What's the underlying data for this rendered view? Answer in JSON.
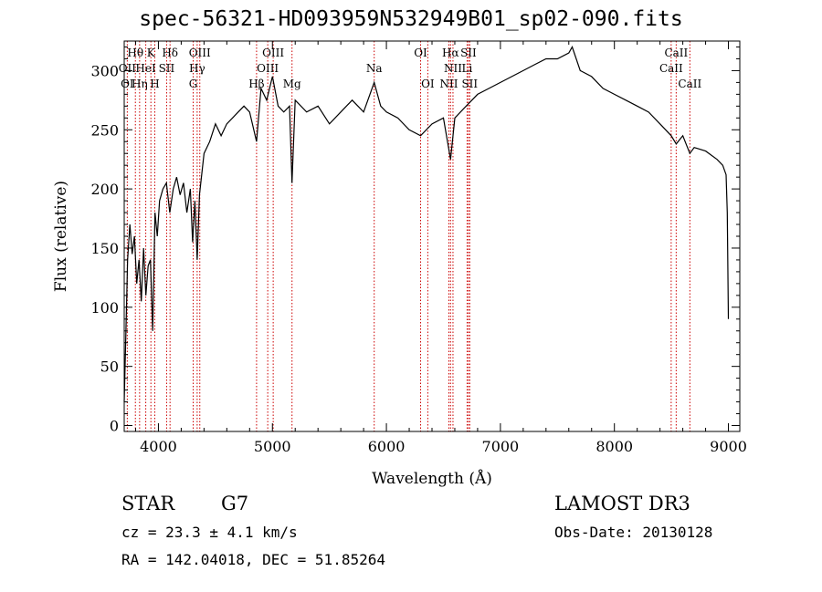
{
  "chart_data": {
    "type": "line",
    "title": "spec-56321-HD093959N532949B01_sp02-090.fits",
    "xlabel": "Wavelength (Å)",
    "ylabel": "Flux (relative)",
    "xlim": [
      3700,
      9100
    ],
    "ylim": [
      -5,
      325
    ],
    "xticks": [
      4000,
      5000,
      6000,
      7000,
      8000,
      9000
    ],
    "yticks": [
      0,
      50,
      100,
      150,
      200,
      250,
      300
    ],
    "grid": false,
    "series": [
      {
        "name": "spectrum",
        "x": [
          3700,
          3715,
          3730,
          3750,
          3770,
          3790,
          3810,
          3830,
          3850,
          3870,
          3890,
          3910,
          3930,
          3950,
          3970,
          3990,
          4010,
          4040,
          4070,
          4100,
          4130,
          4160,
          4190,
          4220,
          4250,
          4280,
          4300,
          4320,
          4340,
          4360,
          4400,
          4450,
          4500,
          4550,
          4600,
          4650,
          4700,
          4750,
          4800,
          4861,
          4900,
          4950,
          5000,
          5050,
          5100,
          5150,
          5172,
          5200,
          5300,
          5400,
          5500,
          5600,
          5700,
          5800,
          5893,
          5950,
          6000,
          6100,
          6200,
          6300,
          6400,
          6500,
          6563,
          6600,
          6700,
          6800,
          6900,
          7000,
          7100,
          7200,
          7300,
          7400,
          7500,
          7600,
          7630,
          7700,
          7800,
          7900,
          8000,
          8100,
          8200,
          8300,
          8400,
          8498,
          8542,
          8600,
          8662,
          8700,
          8800,
          8900,
          8950,
          8980,
          8990,
          9000
        ],
        "y": [
          20,
          80,
          140,
          170,
          145,
          160,
          120,
          140,
          105,
          150,
          110,
          135,
          140,
          80,
          180,
          160,
          190,
          200,
          205,
          180,
          200,
          210,
          195,
          205,
          180,
          200,
          155,
          190,
          140,
          195,
          230,
          240,
          255,
          245,
          255,
          260,
          265,
          270,
          265,
          240,
          285,
          275,
          295,
          270,
          265,
          270,
          205,
          275,
          265,
          270,
          255,
          265,
          275,
          265,
          290,
          270,
          265,
          260,
          250,
          245,
          255,
          260,
          225,
          260,
          270,
          280,
          285,
          290,
          295,
          300,
          305,
          310,
          310,
          315,
          320,
          300,
          295,
          285,
          280,
          275,
          270,
          265,
          255,
          245,
          238,
          245,
          230,
          235,
          232,
          225,
          220,
          212,
          180,
          90
        ]
      }
    ],
    "line_labels": [
      {
        "text": "Hθ",
        "row": 1,
        "wl": 3798
      },
      {
        "text": "K",
        "row": 1,
        "wl": 3934
      },
      {
        "text": "Hδ",
        "row": 1,
        "wl": 4102
      },
      {
        "text": "OIII",
        "row": 1,
        "wl": 4363
      },
      {
        "text": "OIII",
        "row": 1,
        "wl": 5007
      },
      {
        "text": "OI",
        "row": 1,
        "wl": 6300
      },
      {
        "text": "Hα",
        "row": 1,
        "wl": 6563
      },
      {
        "text": "SII",
        "row": 1,
        "wl": 6720
      },
      {
        "text": "CaII",
        "row": 1,
        "wl": 8542
      },
      {
        "text": "OII",
        "row": 2,
        "wl": 3727
      },
      {
        "text": "HeI",
        "row": 2,
        "wl": 3889
      },
      {
        "text": "SII",
        "row": 2,
        "wl": 4072
      },
      {
        "text": "Hγ",
        "row": 2,
        "wl": 4340
      },
      {
        "text": "OIII",
        "row": 2,
        "wl": 4959
      },
      {
        "text": "Na",
        "row": 2,
        "wl": 5893
      },
      {
        "text": "NII",
        "row": 2,
        "wl": 6584
      },
      {
        "text": "Li",
        "row": 2,
        "wl": 6708
      },
      {
        "text": "CaII",
        "row": 2,
        "wl": 8498
      },
      {
        "text": "OI",
        "row": 3,
        "wl": 3727
      },
      {
        "text": "Hη",
        "row": 3,
        "wl": 3835
      },
      {
        "text": "H",
        "row": 3,
        "wl": 3968
      },
      {
        "text": "G",
        "row": 3,
        "wl": 4305
      },
      {
        "text": "Hβ",
        "row": 3,
        "wl": 4861
      },
      {
        "text": "Mg",
        "row": 3,
        "wl": 5172
      },
      {
        "text": "OI",
        "row": 3,
        "wl": 6363
      },
      {
        "text": "NII",
        "row": 3,
        "wl": 6548
      },
      {
        "text": "SII",
        "row": 3,
        "wl": 6731
      },
      {
        "text": "CaII",
        "row": 3,
        "wl": 8662
      }
    ],
    "line_markers": [
      3727,
      3798,
      3835,
      3889,
      3934,
      3968,
      4072,
      4102,
      4305,
      4340,
      4363,
      4861,
      4959,
      5007,
      5172,
      5893,
      6300,
      6363,
      6548,
      6563,
      6584,
      6708,
      6720,
      6731,
      8498,
      8542,
      8662
    ]
  },
  "footer": {
    "object_class": "STAR",
    "subclass": "G7",
    "survey": "LAMOST DR3",
    "redshift": "cz = 23.3 ± 4.1 km/s",
    "obs_date": "Obs-Date: 20130128",
    "coords": "RA = 142.04018, DEC =  51.85264"
  },
  "colors": {
    "line": "#000000",
    "marker": "#cc0000"
  }
}
